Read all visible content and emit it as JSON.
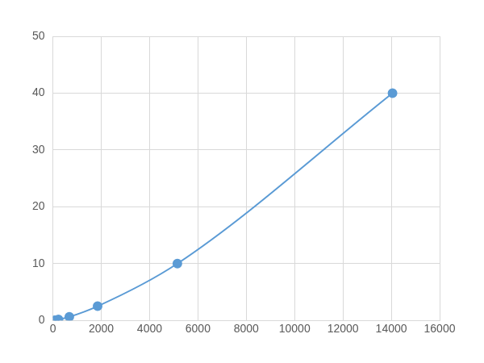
{
  "chart_data": {
    "type": "scatter",
    "x": [
      80,
      230,
      680,
      1850,
      5150,
      14050
    ],
    "values": [
      0.04,
      0.16,
      0.63,
      2.5,
      10,
      40
    ],
    "color": "#5b9bd5",
    "marker": "circle",
    "line_style": "solid",
    "xlim": [
      0,
      16000
    ],
    "xticks": [
      0,
      2000,
      4000,
      6000,
      8000,
      10000,
      12000,
      14000,
      16000
    ],
    "ylim": [
      0,
      50
    ],
    "yticks": [
      0,
      10,
      20,
      30,
      40,
      50
    ],
    "grid": true
  }
}
